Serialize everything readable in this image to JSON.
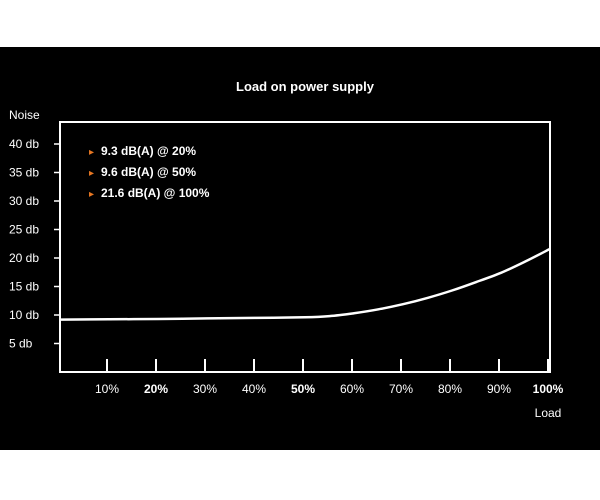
{
  "chart_data": {
    "type": "line",
    "title": "Load on power supply",
    "ylabel": "Noise",
    "xlabel": "Load",
    "y_ticks": [
      {
        "value": 40,
        "label": "40 db"
      },
      {
        "value": 35,
        "label": "35 db"
      },
      {
        "value": 30,
        "label": "30 db"
      },
      {
        "value": 25,
        "label": "25 db"
      },
      {
        "value": 20,
        "label": "20 db"
      },
      {
        "value": 15,
        "label": "15 db"
      },
      {
        "value": 10,
        "label": "10 db"
      },
      {
        "value": 5,
        "label": "5 db"
      }
    ],
    "x_ticks": [
      {
        "value": 10,
        "label": "10%",
        "bold": false
      },
      {
        "value": 20,
        "label": "20%",
        "bold": true
      },
      {
        "value": 30,
        "label": "30%",
        "bold": false
      },
      {
        "value": 40,
        "label": "40%",
        "bold": false
      },
      {
        "value": 50,
        "label": "50%",
        "bold": true
      },
      {
        "value": 60,
        "label": "60%",
        "bold": false
      },
      {
        "value": 70,
        "label": "70%",
        "bold": false
      },
      {
        "value": 80,
        "label": "80%",
        "bold": false
      },
      {
        "value": 90,
        "label": "90%",
        "bold": false
      },
      {
        "value": 100,
        "label": "100%",
        "bold": true
      }
    ],
    "xlim": [
      0,
      100
    ],
    "ylim": [
      0,
      45
    ],
    "grid": false,
    "series": [
      {
        "x": [
          0,
          10,
          20,
          30,
          40,
          50,
          55,
          60,
          65,
          70,
          75,
          80,
          85,
          90,
          95,
          100
        ],
        "y": [
          9.2,
          9.25,
          9.3,
          9.4,
          9.5,
          9.6,
          9.8,
          10.3,
          11.0,
          11.9,
          13.0,
          14.3,
          15.8,
          17.4,
          19.4,
          21.6
        ]
      }
    ],
    "annotations": [
      {
        "marker": "▸",
        "text": "9.3 dB(A) @ 20%"
      },
      {
        "marker": "▸",
        "text": "9.6 dB(A) @ 50%"
      },
      {
        "marker": "▸",
        "text": "21.6 dB(A) @ 100%"
      }
    ],
    "colors": {
      "background": "#000000",
      "foreground": "#ffffff",
      "accent": "#e87722"
    }
  }
}
